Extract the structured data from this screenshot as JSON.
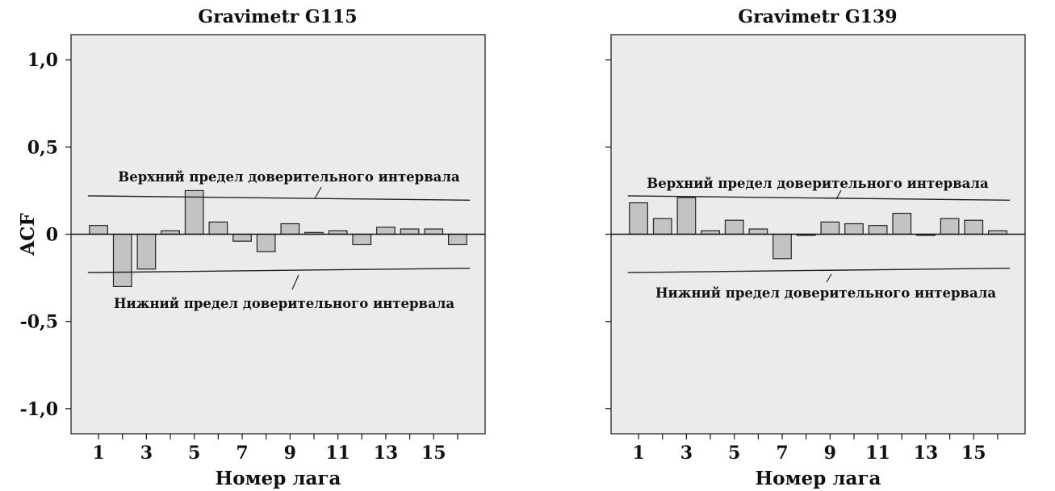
{
  "chart_data": [
    {
      "type": "bar",
      "title": "Gravimetr G115",
      "xlabel": "Номер лага",
      "ylabel": "ACF",
      "ylim": [
        -1.0,
        1.0
      ],
      "yticks": [
        1.0,
        0.5,
        0,
        -0.5,
        -1.0
      ],
      "ytick_labels": [
        "1,0",
        "0,5",
        "0",
        "-0,5",
        "-1,0"
      ],
      "categories": [
        1,
        2,
        3,
        4,
        5,
        6,
        7,
        8,
        9,
        10,
        11,
        12,
        13,
        14,
        15,
        16
      ],
      "xtick_labels": [
        "1",
        "3",
        "5",
        "7",
        "9",
        "11",
        "13",
        "15"
      ],
      "values": [
        0.05,
        -0.3,
        -0.2,
        0.02,
        0.25,
        0.07,
        -0.04,
        -0.1,
        0.06,
        0.01,
        0.02,
        -0.06,
        0.04,
        0.03,
        0.03,
        -0.06
      ],
      "confidence_upper": [
        0.22,
        0.195
      ],
      "confidence_lower": [
        -0.22,
        -0.195
      ],
      "upper_label": "Верхний предел доверительного интервала",
      "lower_label": "Нижний предел доверительного интервала",
      "show_ytick_labels": true,
      "colors": {
        "bar": "#c3c3c3",
        "background": "#ebebeb"
      }
    },
    {
      "type": "bar",
      "title": "Gravimetr G139",
      "xlabel": "Номер лага",
      "ylabel": "",
      "ylim": [
        -1.0,
        1.0
      ],
      "yticks": [
        1.0,
        0.5,
        0,
        -0.5,
        -1.0
      ],
      "ytick_labels": [],
      "categories": [
        1,
        2,
        3,
        4,
        5,
        6,
        7,
        8,
        9,
        10,
        11,
        12,
        13,
        14,
        15,
        16
      ],
      "xtick_labels": [
        "1",
        "3",
        "5",
        "7",
        "9",
        "11",
        "13",
        "15"
      ],
      "values": [
        0.18,
        0.09,
        0.21,
        0.02,
        0.08,
        0.03,
        -0.14,
        0.0,
        0.07,
        0.06,
        0.05,
        0.12,
        0.0,
        0.09,
        0.08,
        0.02
      ],
      "confidence_upper": [
        0.22,
        0.195
      ],
      "confidence_lower": [
        -0.22,
        -0.195
      ],
      "upper_label": "Верхний предел доверительного интервала",
      "lower_label": "Нижний предел доверительного интервала",
      "show_ytick_labels": false,
      "colors": {
        "bar": "#c3c3c3",
        "background": "#ebebeb"
      }
    }
  ]
}
